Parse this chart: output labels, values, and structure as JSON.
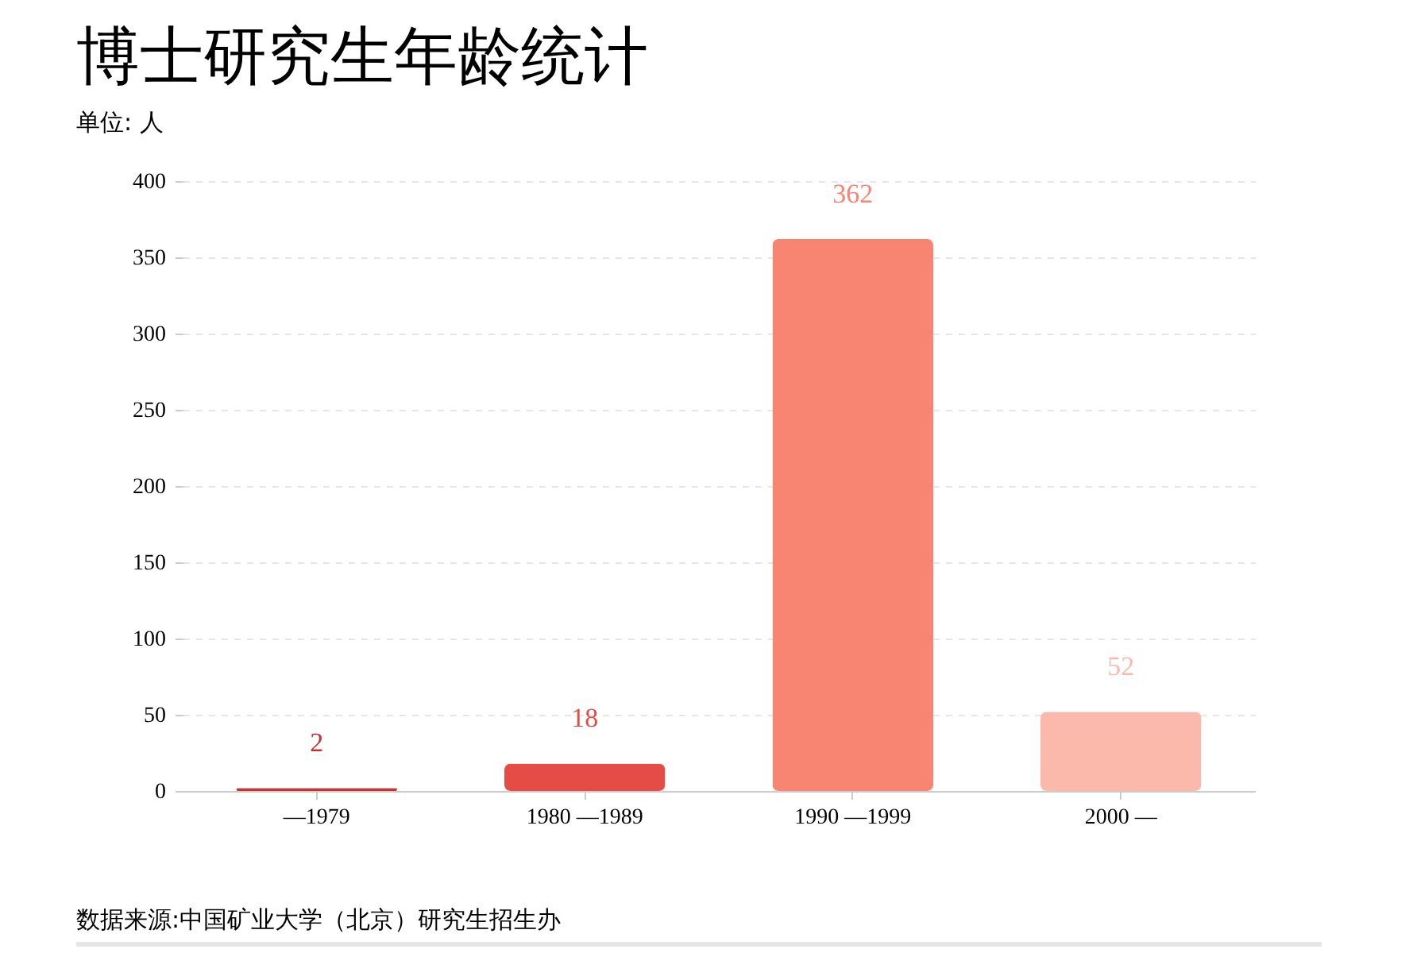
{
  "chart_data": {
    "type": "bar",
    "title": "博士研究生年龄统计",
    "subtitle": "单位: 人",
    "categories": [
      "—1979",
      "1980 —1989",
      "1990 —1999",
      "2000 —"
    ],
    "values": [
      2,
      18,
      362,
      52
    ],
    "colors": [
      "#c23531",
      "#e54c45",
      "#f78572",
      "#fab9ab"
    ],
    "ylim": [
      0,
      400
    ],
    "yticks": [
      0,
      50,
      100,
      150,
      200,
      250,
      300,
      350,
      400
    ],
    "grid": "y",
    "data_labels": true,
    "annotations": [
      "数据来源:中国矿业大学（北京）研究生招生办"
    ]
  }
}
